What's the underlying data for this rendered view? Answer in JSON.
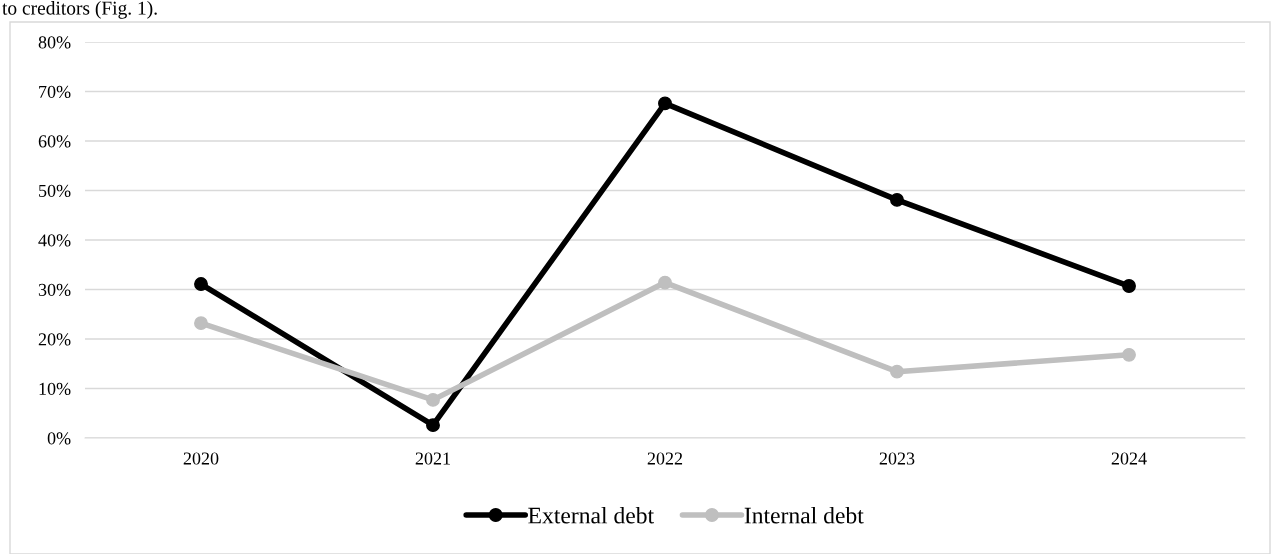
{
  "chart_data": {
    "type": "line",
    "categories": [
      "2020",
      "2021",
      "2022",
      "2023",
      "2024"
    ],
    "series": [
      {
        "name": "External debt",
        "color": "#000000",
        "values": [
          31.1,
          2.6,
          67.6,
          48.1,
          30.7
        ]
      },
      {
        "name": "Internal debt",
        "color": "#bfbfbf",
        "values": [
          23.2,
          7.7,
          31.4,
          13.4,
          16.8
        ]
      }
    ],
    "ylim": [
      0,
      80
    ],
    "yticks": [
      {
        "value": 0,
        "label": "0%"
      },
      {
        "value": 10,
        "label": "10%"
      },
      {
        "value": 20,
        "label": "20%"
      },
      {
        "value": 30,
        "label": "30%"
      },
      {
        "value": 40,
        "label": "40%"
      },
      {
        "value": 50,
        "label": "50%"
      },
      {
        "value": 60,
        "label": "60%"
      },
      {
        "value": 70,
        "label": "70%"
      },
      {
        "value": 80,
        "label": "80%"
      }
    ],
    "grid": "y",
    "legend": "bottom",
    "marker": "circle",
    "line_style": "solid",
    "annotations": [
      "to creditors (Fig. 1)."
    ]
  }
}
